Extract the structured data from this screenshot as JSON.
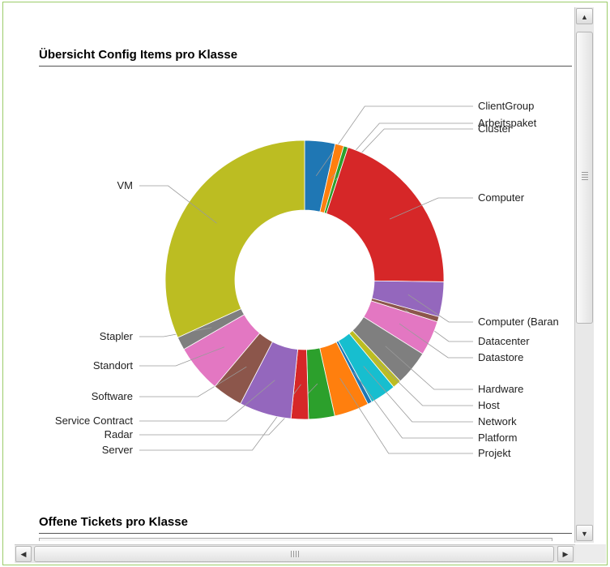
{
  "sections": {
    "config_items_title": "Übersicht Config Items pro Klasse",
    "tickets_title": "Offene Tickets pro Klasse"
  },
  "chart_data": {
    "type": "pie",
    "donut": true,
    "title": "Übersicht Config Items pro Klasse",
    "slices": [
      {
        "label": "ClientGroup",
        "value": 3.5,
        "color": "#1f77b4"
      },
      {
        "label": "Arbeitspaket",
        "value": 1.0,
        "color": "#ff7f0e"
      },
      {
        "label": "Cluster",
        "value": 0.5,
        "color": "#2ca02c"
      },
      {
        "label": "Computer",
        "value": 20.0,
        "color": "#d62728"
      },
      {
        "label": "Computer (Baran",
        "value": 4.0,
        "color": "#9467bd"
      },
      {
        "label": "Datacenter",
        "value": 0.6,
        "color": "#8c564b"
      },
      {
        "label": "Datastore",
        "value": 4.0,
        "color": "#e377c2"
      },
      {
        "label": "Hardware",
        "value": 4.0,
        "color": "#7f7f7f"
      },
      {
        "label": "Host",
        "value": 1.0,
        "color": "#bcbd22"
      },
      {
        "label": "Network",
        "value": 3.0,
        "color": "#17becf"
      },
      {
        "label": "Platform",
        "value": 0.5,
        "color": "#1f77b4"
      },
      {
        "label": "Projekt",
        "value": 4.0,
        "color": "#ff7f0e"
      },
      {
        "label": "Radar",
        "value": 3.0,
        "color": "#2ca02c"
      },
      {
        "label": "Server",
        "value": 2.0,
        "color": "#d62728"
      },
      {
        "label": "Service Contract",
        "value": 6.0,
        "color": "#9467bd"
      },
      {
        "label": "Software",
        "value": 3.5,
        "color": "#8c564b"
      },
      {
        "label": "Standort",
        "value": 5.5,
        "color": "#e377c2"
      },
      {
        "label": "Stapler",
        "value": 1.5,
        "color": "#7f7f7f"
      },
      {
        "label": "VM",
        "value": 31.5,
        "color": "#bcbd22"
      }
    ]
  },
  "icons": {
    "scroll_up": "▲",
    "scroll_down": "▼",
    "scroll_left": "◀",
    "scroll_right": "▶"
  }
}
